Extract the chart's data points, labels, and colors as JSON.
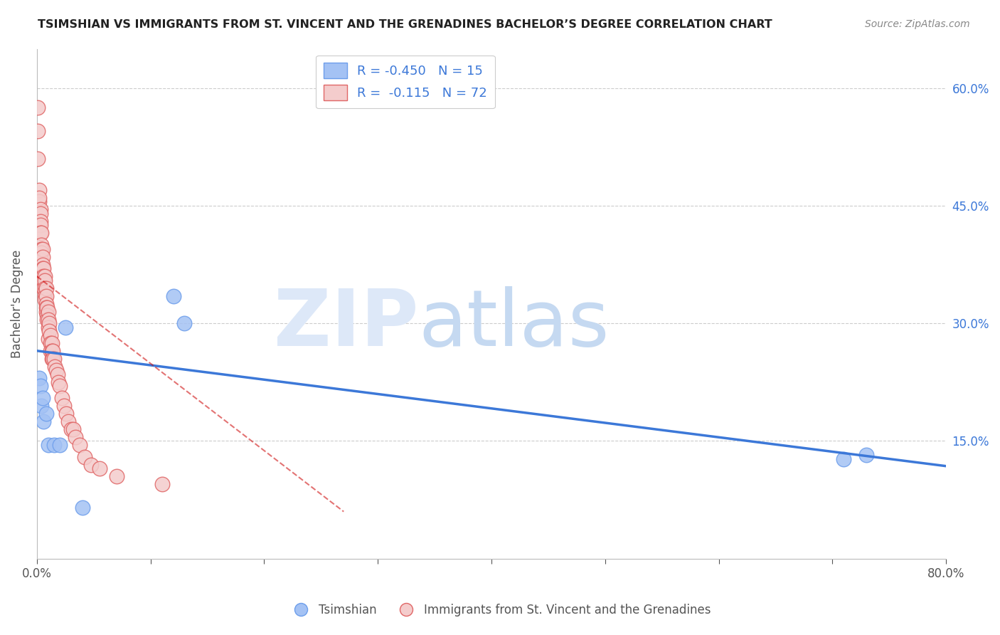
{
  "title": "TSIMSHIAN VS IMMIGRANTS FROM ST. VINCENT AND THE GRENADINES BACHELOR’S DEGREE CORRELATION CHART",
  "source": "Source: ZipAtlas.com",
  "ylabel": "Bachelor's Degree",
  "xlim": [
    0.0,
    0.8
  ],
  "ylim": [
    0.0,
    0.65
  ],
  "yticks": [
    0.0,
    0.15,
    0.3,
    0.45,
    0.6
  ],
  "ytick_labels": [
    "",
    "15.0%",
    "30.0%",
    "45.0%",
    "60.0%"
  ],
  "xticks": [
    0.0,
    0.1,
    0.2,
    0.3,
    0.4,
    0.5,
    0.6,
    0.7,
    0.8
  ],
  "xtick_labels": [
    "0.0%",
    "",
    "",
    "",
    "",
    "",
    "",
    "",
    "80.0%"
  ],
  "legend_labels": [
    "Tsimshian",
    "Immigrants from St. Vincent and the Grenadines"
  ],
  "R_blue": -0.45,
  "N_blue": 15,
  "R_pink": -0.115,
  "N_pink": 72,
  "color_blue_fill": "#a4c2f4",
  "color_pink_fill": "#f4cccc",
  "color_blue_edge": "#6d9eeb",
  "color_pink_edge": "#e06666",
  "color_blue_line": "#3c78d8",
  "color_pink_line": "#cc0000",
  "blue_points_x": [
    0.002,
    0.003,
    0.004,
    0.005,
    0.006,
    0.008,
    0.01,
    0.015,
    0.02,
    0.025,
    0.04,
    0.12,
    0.71,
    0.73,
    0.13
  ],
  "blue_points_y": [
    0.23,
    0.22,
    0.195,
    0.205,
    0.175,
    0.185,
    0.145,
    0.145,
    0.145,
    0.295,
    0.065,
    0.335,
    0.127,
    0.132,
    0.3
  ],
  "pink_points_x": [
    0.001,
    0.001,
    0.001,
    0.002,
    0.002,
    0.002,
    0.003,
    0.003,
    0.003,
    0.003,
    0.003,
    0.004,
    0.004,
    0.004,
    0.004,
    0.004,
    0.005,
    0.005,
    0.005,
    0.005,
    0.005,
    0.006,
    0.006,
    0.006,
    0.006,
    0.007,
    0.007,
    0.007,
    0.007,
    0.007,
    0.007,
    0.008,
    0.008,
    0.008,
    0.008,
    0.008,
    0.009,
    0.009,
    0.009,
    0.01,
    0.01,
    0.01,
    0.01,
    0.011,
    0.011,
    0.012,
    0.012,
    0.012,
    0.013,
    0.013,
    0.013,
    0.014,
    0.014,
    0.015,
    0.016,
    0.017,
    0.018,
    0.019,
    0.02,
    0.022,
    0.024,
    0.026,
    0.028,
    0.03,
    0.032,
    0.034,
    0.038,
    0.042,
    0.048,
    0.055,
    0.07,
    0.11
  ],
  "pink_points_y": [
    0.575,
    0.545,
    0.51,
    0.47,
    0.455,
    0.46,
    0.445,
    0.44,
    0.43,
    0.425,
    0.415,
    0.415,
    0.4,
    0.395,
    0.39,
    0.38,
    0.395,
    0.385,
    0.375,
    0.37,
    0.36,
    0.37,
    0.36,
    0.355,
    0.345,
    0.36,
    0.355,
    0.345,
    0.34,
    0.335,
    0.33,
    0.345,
    0.335,
    0.325,
    0.32,
    0.315,
    0.32,
    0.31,
    0.305,
    0.315,
    0.305,
    0.295,
    0.28,
    0.3,
    0.29,
    0.285,
    0.275,
    0.265,
    0.275,
    0.265,
    0.255,
    0.265,
    0.255,
    0.255,
    0.245,
    0.24,
    0.235,
    0.225,
    0.22,
    0.205,
    0.195,
    0.185,
    0.175,
    0.165,
    0.165,
    0.155,
    0.145,
    0.13,
    0.12,
    0.115,
    0.105,
    0.095
  ],
  "blue_line_x0": 0.0,
  "blue_line_y0": 0.265,
  "blue_line_x1": 0.8,
  "blue_line_y1": 0.118,
  "pink_line_x0": 0.0,
  "pink_line_y0": 0.36,
  "pink_line_x1": 0.27,
  "pink_line_y1": 0.06
}
